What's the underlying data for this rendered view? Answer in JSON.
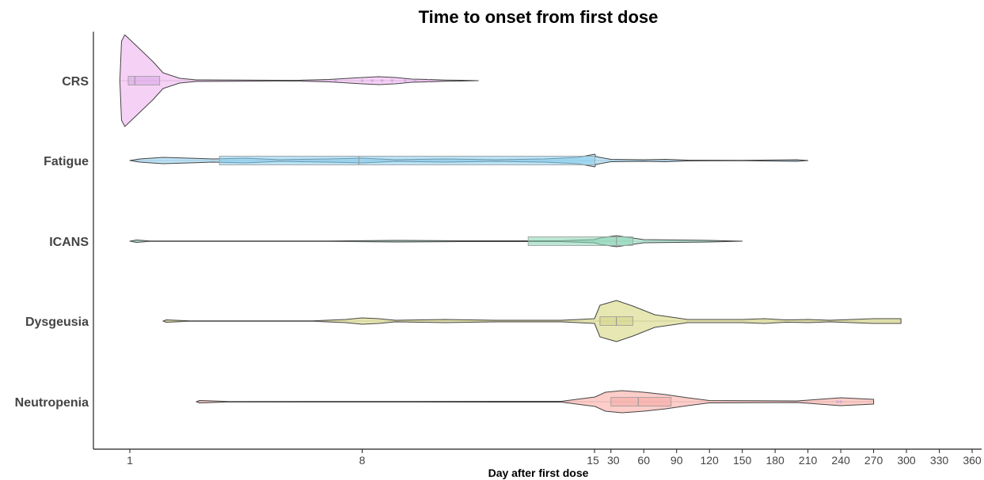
{
  "chart_data": {
    "type": "violin",
    "title": "Time to onset from first dose",
    "xlabel": "Day after first dose",
    "ylabel": "",
    "x_scale": "piecewise: days 1–15 linear, 15–360 linear",
    "xlim": [
      1,
      360
    ],
    "x_ticks": [
      {
        "value": 1,
        "label": "1"
      },
      {
        "value": 8,
        "label": "8"
      },
      {
        "value": 15,
        "label": "15"
      },
      {
        "value": 30,
        "label": "30"
      },
      {
        "value": 60,
        "label": "60"
      },
      {
        "value": 90,
        "label": "90"
      },
      {
        "value": 120,
        "label": "120"
      },
      {
        "value": 150,
        "label": "150"
      },
      {
        "value": 180,
        "label": "180"
      },
      {
        "value": 210,
        "label": "210"
      },
      {
        "value": 240,
        "label": "240"
      },
      {
        "value": 270,
        "label": "270"
      },
      {
        "value": 300,
        "label": "300"
      },
      {
        "value": 330,
        "label": "330"
      },
      {
        "value": 360,
        "label": "360"
      }
    ],
    "grid": false,
    "legend": "none",
    "categories": [
      "CRS",
      "Fatigue",
      "ICANS",
      "Dysgeusia",
      "Neutropenia"
    ],
    "series": [
      {
        "category": "CRS",
        "color": "#f5c9f5",
        "box_color": "#dca8e8",
        "range": [
          0.7,
          11.5
        ],
        "box": {
          "q1": 0.95,
          "median": 1.15,
          "q3": 1.9
        },
        "density": [
          [
            0.7,
            0
          ],
          [
            0.75,
            50
          ],
          [
            0.85,
            58
          ],
          [
            1.0,
            52
          ],
          [
            1.3,
            40
          ],
          [
            1.7,
            24
          ],
          [
            2.0,
            10
          ],
          [
            2.5,
            3
          ],
          [
            3.0,
            1
          ],
          [
            6.0,
            0.4
          ],
          [
            7.0,
            1.5
          ],
          [
            8.0,
            4
          ],
          [
            8.5,
            5
          ],
          [
            9.0,
            4
          ],
          [
            9.5,
            2
          ],
          [
            10.0,
            1.5
          ],
          [
            10.5,
            0.8
          ],
          [
            11.0,
            0.5
          ],
          [
            11.5,
            0
          ]
        ],
        "points": [
          7.2,
          8.0,
          8.3,
          8.6,
          8.9,
          9.3,
          9.6,
          10.0
        ]
      },
      {
        "category": "Fatigue",
        "color": "#b3def5",
        "box_color": "#8ccfee",
        "range": [
          1,
          210
        ],
        "box": {
          "q1": 3.7,
          "median": 7.9,
          "q3": 15.3
        },
        "density": [
          [
            1.0,
            0
          ],
          [
            1.3,
            2
          ],
          [
            2.0,
            4
          ],
          [
            3.5,
            2
          ],
          [
            4.5,
            3
          ],
          [
            5.5,
            1
          ],
          [
            7.0,
            2
          ],
          [
            8.0,
            3
          ],
          [
            9.0,
            1
          ],
          [
            10.5,
            2
          ],
          [
            12.0,
            1
          ],
          [
            13.5,
            2
          ],
          [
            14.5,
            4
          ],
          [
            15.3,
            8
          ],
          [
            15.7,
            7
          ],
          [
            16.0,
            5
          ],
          [
            30.0,
            1.5
          ],
          [
            60.0,
            1
          ],
          [
            80.0,
            1.5
          ],
          [
            100.0,
            0.5
          ],
          [
            150.0,
            0.2
          ],
          [
            200.0,
            1
          ],
          [
            210.0,
            0
          ]
        ],
        "points": []
      },
      {
        "category": "ICANS",
        "color": "#b3e6d4",
        "box_color": "#8fd5b8",
        "range": [
          1,
          150
        ],
        "box": {
          "q1": 13.0,
          "median": 35,
          "q3": 50
        },
        "density": [
          [
            1.0,
            0
          ],
          [
            1.2,
            1.5
          ],
          [
            1.6,
            0.3
          ],
          [
            7.0,
            0.2
          ],
          [
            9.0,
            1
          ],
          [
            11.0,
            0.5
          ],
          [
            14.0,
            0.5
          ],
          [
            15.0,
            2
          ],
          [
            20.0,
            4
          ],
          [
            35.0,
            7
          ],
          [
            50.0,
            4
          ],
          [
            60.0,
            2
          ],
          [
            90.0,
            1.5
          ],
          [
            120.0,
            1
          ],
          [
            150.0,
            0
          ]
        ],
        "points": []
      },
      {
        "category": "Dysgeusia",
        "color": "#e3e3a6",
        "box_color": "#d6d68a",
        "range": [
          2,
          295
        ],
        "box": {
          "q1": 20,
          "median": 35,
          "q3": 50
        },
        "density": [
          [
            2.0,
            0
          ],
          [
            2.1,
            1.5
          ],
          [
            2.8,
            0.3
          ],
          [
            6.5,
            0.2
          ],
          [
            7.5,
            2
          ],
          [
            8.0,
            4
          ],
          [
            8.5,
            3
          ],
          [
            9.0,
            1
          ],
          [
            10.5,
            2
          ],
          [
            12.0,
            1
          ],
          [
            14.0,
            1
          ],
          [
            15.0,
            3
          ],
          [
            20.0,
            20
          ],
          [
            35.0,
            26
          ],
          [
            50.0,
            19
          ],
          [
            70.0,
            8
          ],
          [
            90.0,
            4
          ],
          [
            100.0,
            2
          ],
          [
            150.0,
            2
          ],
          [
            170.0,
            3
          ],
          [
            190.0,
            1.5
          ],
          [
            210.0,
            2
          ],
          [
            230.0,
            1
          ],
          [
            250.0,
            2
          ],
          [
            270.0,
            3
          ],
          [
            295.0,
            3
          ]
        ],
        "points": []
      },
      {
        "category": "Neutropenia",
        "color": "#fbc4c0",
        "box_color": "#f5aaa6",
        "range": [
          3,
          270
        ],
        "box": {
          "q1": 30,
          "median": 55,
          "q3": 85
        },
        "density": [
          [
            3.0,
            0
          ],
          [
            3.1,
            1.5
          ],
          [
            4.0,
            0.3
          ],
          [
            14.0,
            0.5
          ],
          [
            15.5,
            6
          ],
          [
            25.0,
            12
          ],
          [
            40.0,
            14
          ],
          [
            60.0,
            12
          ],
          [
            80.0,
            9
          ],
          [
            100.0,
            5
          ],
          [
            120.0,
            1.5
          ],
          [
            200.0,
            1
          ],
          [
            220.0,
            3
          ],
          [
            240.0,
            5
          ],
          [
            255.0,
            4
          ],
          [
            270.0,
            3
          ]
        ],
        "points": [
          237,
          240
        ]
      }
    ]
  }
}
